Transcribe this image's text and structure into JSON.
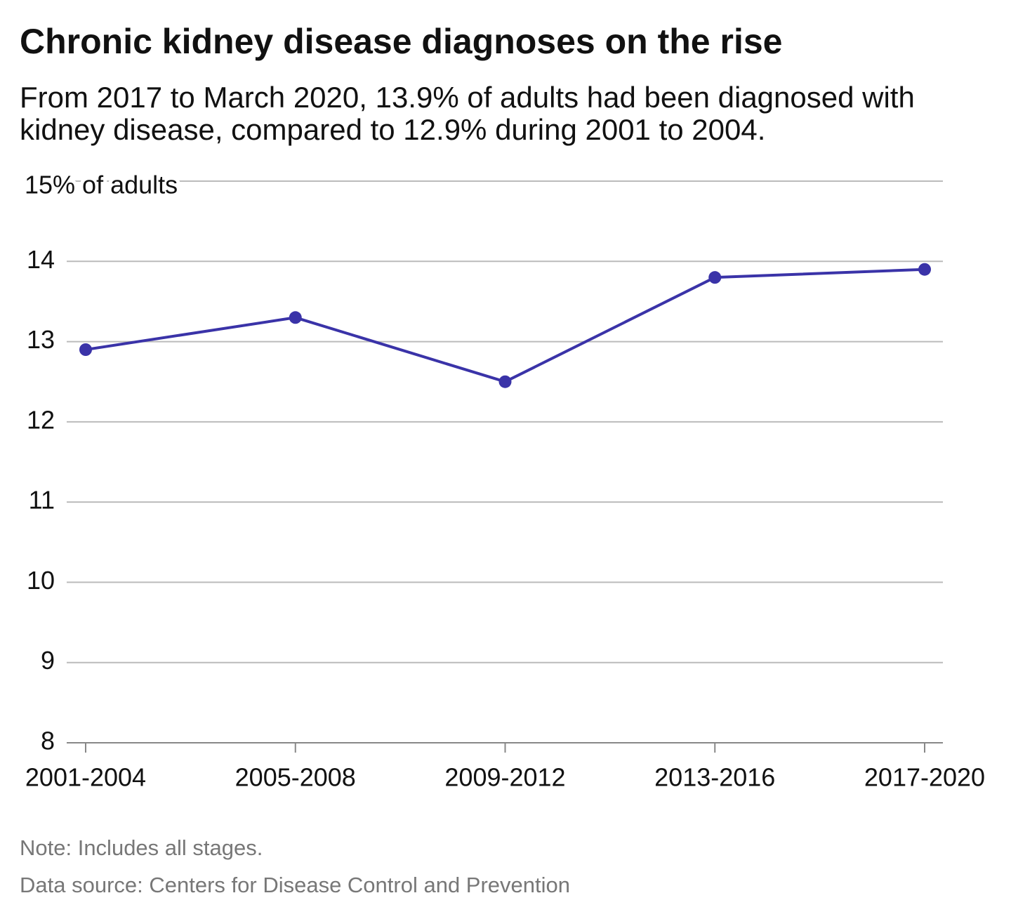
{
  "chart_data": {
    "type": "line",
    "title": "Chronic kidney disease diagnoses on the rise",
    "subtitle": "From 2017 to March 2020, 13.9% of adults had been diagnosed with kidney disease, compared to 12.9% during 2001 to 2004.",
    "categories": [
      "2001-2004",
      "2005-2008",
      "2009-2012",
      "2013-2016",
      "2017-2020"
    ],
    "series": [
      {
        "name": "Chronic kidney disease",
        "color": "#3a33a8",
        "values": [
          12.9,
          13.3,
          12.5,
          13.8,
          13.9
        ]
      }
    ],
    "ylim": [
      8,
      15
    ],
    "yticks": [
      8,
      9,
      10,
      11,
      12,
      13,
      14,
      {
        "value": 15,
        "label": "15% of adults"
      }
    ],
    "grid": true,
    "note": "Note: Includes all stages.",
    "source": "Data source: Centers for Disease Control and Prevention"
  }
}
